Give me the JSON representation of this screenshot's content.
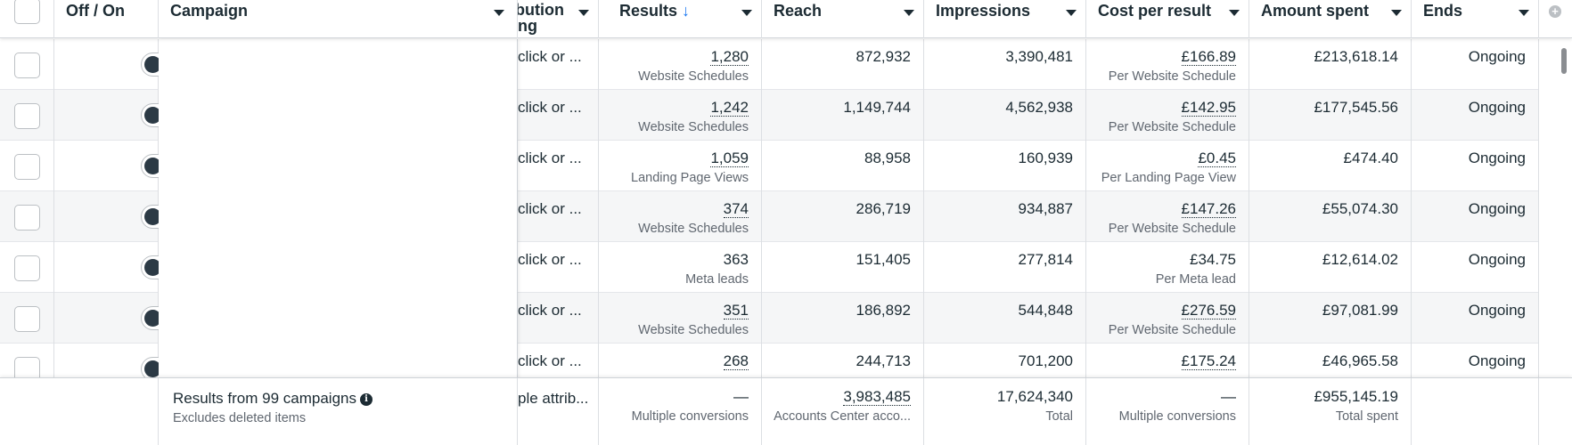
{
  "header": {
    "off_on": "Off / On",
    "campaign": "Campaign",
    "attribution_line1": "bution",
    "attribution_line2": "ng",
    "results": "Results",
    "results_sort": "↓",
    "reach": "Reach",
    "impressions": "Impressions",
    "cost_per_result": "Cost per result",
    "amount_spent": "Amount spent",
    "ends": "Ends"
  },
  "rows": [
    {
      "attribution": "click or ...",
      "results": "1,280",
      "results_type": "Website Schedules",
      "reach": "872,932",
      "impressions": "3,390,481",
      "cost": "£166.89",
      "cost_type": "Per Website Schedule",
      "spent": "£213,618.14",
      "ends": "Ongoing"
    },
    {
      "attribution": "click or ...",
      "results": "1,242",
      "results_type": "Website Schedules",
      "reach": "1,149,744",
      "impressions": "4,562,938",
      "cost": "£142.95",
      "cost_type": "Per Website Schedule",
      "spent": "£177,545.56",
      "ends": "Ongoing"
    },
    {
      "attribution": "click or ...",
      "results": "1,059",
      "results_type": "Landing Page Views",
      "reach": "88,958",
      "impressions": "160,939",
      "cost": "£0.45",
      "cost_type": "Per Landing Page View",
      "spent": "£474.40",
      "ends": "Ongoing"
    },
    {
      "attribution": "click or ...",
      "results": "374",
      "results_type": "Website Schedules",
      "reach": "286,719",
      "impressions": "934,887",
      "cost": "£147.26",
      "cost_type": "Per Website Schedule",
      "spent": "£55,074.30",
      "ends": "Ongoing"
    },
    {
      "attribution": "click or ...",
      "results": "363",
      "results_type": "Meta leads",
      "reach": "151,405",
      "impressions": "277,814",
      "cost": "£34.75",
      "cost_type": "Per Meta lead",
      "spent": "£12,614.02",
      "ends": "Ongoing"
    },
    {
      "attribution": "click or ...",
      "results": "351",
      "results_type": "Website Schedules",
      "reach": "186,892",
      "impressions": "544,848",
      "cost": "£276.59",
      "cost_type": "Per Website Schedule",
      "spent": "£97,081.99",
      "ends": "Ongoing"
    },
    {
      "attribution": "click or ...",
      "results": "268",
      "results_type": "",
      "reach": "244,713",
      "impressions": "701,200",
      "cost": "£175.24",
      "cost_type": "",
      "spent": "£46,965.58",
      "ends": "Ongoing"
    }
  ],
  "footer": {
    "title": "Results from 99 campaigns",
    "subtitle": "Excludes deleted items",
    "attribution": "ple attrib...",
    "results": "—",
    "results_sub": "Multiple conversions",
    "reach": "3,983,485",
    "reach_sub": "Accounts Center acco...",
    "impressions": "17,624,340",
    "impressions_sub": "Total",
    "cost": "—",
    "cost_sub": "Multiple conversions",
    "spent": "£955,145.19",
    "spent_sub": "Total spent"
  },
  "icons": {
    "info": "info-icon",
    "add_column": "plus-icon"
  }
}
